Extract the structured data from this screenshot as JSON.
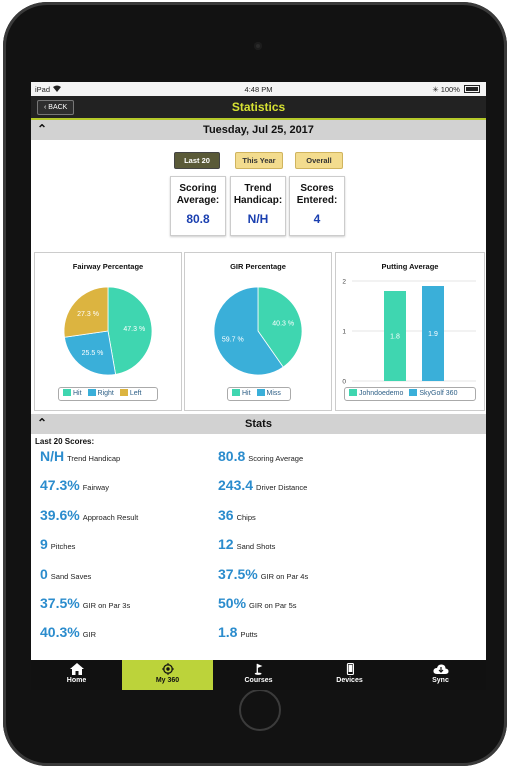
{
  "status": {
    "device": "iPad",
    "time": "4:48 PM",
    "battery": "100%"
  },
  "nav": {
    "back_label": "BACK",
    "title": "Statistics"
  },
  "date_header": "Tuesday, Jul 25, 2017",
  "filters": [
    {
      "label": "Last 20",
      "active": true
    },
    {
      "label": "This Year",
      "active": false
    },
    {
      "label": "Overall",
      "active": false
    }
  ],
  "summary": [
    {
      "label_line1": "Scoring",
      "label_line2": "Average:",
      "value": "80.8"
    },
    {
      "label_line1": "Trend",
      "label_line2": "Handicap:",
      "value": "N/H"
    },
    {
      "label_line1": "Scores",
      "label_line2": "Entered:",
      "value": "4"
    }
  ],
  "chart_data": [
    {
      "type": "pie",
      "title": "Fairway Percentage",
      "categories": [
        "Hit",
        "Right",
        "Left"
      ],
      "values": [
        47.3,
        25.5,
        27.3
      ],
      "labels": [
        "47.3 %",
        "25.5 %",
        "27.3 %"
      ],
      "colors": [
        "#3fd6b0",
        "#3aafd9",
        "#dcb440"
      ]
    },
    {
      "type": "pie",
      "title": "GIR Percentage",
      "categories": [
        "Hit",
        "Miss"
      ],
      "values": [
        40.3,
        59.7
      ],
      "labels": [
        "40.3 %",
        "59.7 %"
      ],
      "colors": [
        "#3fd6b0",
        "#3aafd9"
      ]
    },
    {
      "type": "bar",
      "title": "Putting Average",
      "categories": [
        "Johndoedemo",
        "SkyGolf 360"
      ],
      "values": [
        1.8,
        1.9
      ],
      "labels": [
        "1.8",
        "1.9"
      ],
      "colors": [
        "#3fd6b0",
        "#3aafd9"
      ],
      "ylim": [
        0,
        2
      ],
      "yticks": [
        "0",
        "1",
        "2"
      ],
      "grid": true
    }
  ],
  "stats_header": "Stats",
  "stats_sub": "Last 20 Scores:",
  "stats": [
    {
      "num": "N/H",
      "label": "Trend Handicap"
    },
    {
      "num": "80.8",
      "label": "Scoring Average"
    },
    {
      "num": "47.3%",
      "label": "Fairway"
    },
    {
      "num": "243.4",
      "label": "Driver Distance"
    },
    {
      "num": "39.6%",
      "label": "Approach Result"
    },
    {
      "num": "36",
      "label": "Chips"
    },
    {
      "num": "9",
      "label": "Pitches"
    },
    {
      "num": "12",
      "label": "Sand Shots"
    },
    {
      "num": "0",
      "label": "Sand Saves"
    },
    {
      "num": "37.5%",
      "label": "GIR on Par 4s"
    },
    {
      "num": "37.5%",
      "label": "GIR on Par 3s"
    },
    {
      "num": "50%",
      "label": "GIR on Par 5s"
    },
    {
      "num": "40.3%",
      "label": "GIR"
    },
    {
      "num": "1.8",
      "label": "Putts"
    }
  ],
  "tabs": [
    {
      "label": "Home",
      "icon": "home-icon",
      "active": false
    },
    {
      "label": "My 360",
      "icon": "target-icon",
      "active": true
    },
    {
      "label": "Courses",
      "icon": "flag-icon",
      "active": false
    },
    {
      "label": "Devices",
      "icon": "phone-icon",
      "active": false
    },
    {
      "label": "Sync",
      "icon": "cloud-sync-icon",
      "active": false
    }
  ]
}
